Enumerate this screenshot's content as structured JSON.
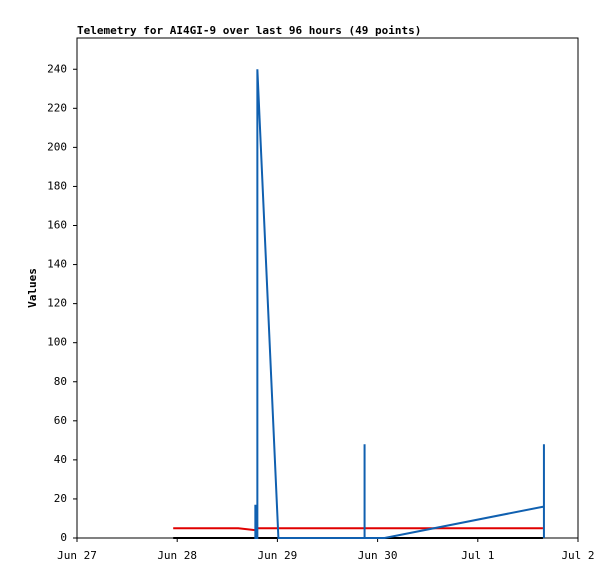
{
  "chart_data": {
    "type": "line",
    "title": "Telemetry for AI4GI-9 over last 96 hours (49 points)",
    "y_label": "Values",
    "xlim": [
      0,
      5
    ],
    "xticks": [
      {
        "value": 0,
        "label": "Jun 27"
      },
      {
        "value": 1,
        "label": "Jun 28"
      },
      {
        "value": 2,
        "label": "Jun 29"
      },
      {
        "value": 3,
        "label": "Jun 30"
      },
      {
        "value": 4,
        "label": "Jul 1"
      },
      {
        "value": 5,
        "label": "Jul 2"
      }
    ],
    "ylim": [
      0,
      256
    ],
    "yticks": [
      0,
      20,
      40,
      60,
      80,
      100,
      120,
      140,
      160,
      180,
      200,
      220,
      240
    ],
    "series": [
      {
        "color": "#000000",
        "x": [
          0.96,
          4.65
        ],
        "values": [
          0,
          0
        ]
      },
      {
        "color": "#e00000",
        "x": [
          0.96,
          1.61,
          1.78,
          1.8,
          4.65
        ],
        "values": [
          5,
          5,
          4,
          5,
          5
        ]
      },
      {
        "color": "#1060b0",
        "x": [
          1.78,
          1.78,
          1.78,
          1.8,
          1.8,
          2.01,
          2.87,
          2.87,
          2.87,
          3.07,
          4.65,
          4.66,
          4.66,
          4.66
        ],
        "values": [
          0,
          17,
          0,
          0,
          240,
          0,
          0,
          48,
          0,
          0,
          16,
          16,
          48,
          0
        ]
      }
    ]
  }
}
